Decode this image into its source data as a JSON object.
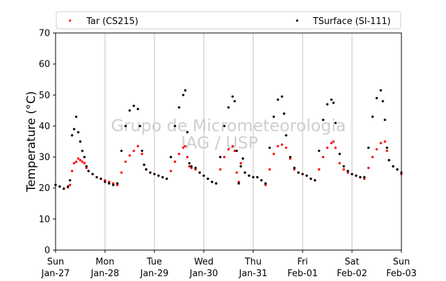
{
  "chart_data": {
    "type": "scatter",
    "title": "",
    "xlabel": "",
    "ylabel": "Temperature (°C)",
    "ylim": [
      0,
      70
    ],
    "yticks": [
      0,
      10,
      20,
      30,
      40,
      50,
      60,
      70
    ],
    "xlim": [
      "2019-01-27 00:00",
      "2019-02-03 00:00"
    ],
    "grid": "vertical lines at each day",
    "legend_position": "top, two columns above plot",
    "xticks": [
      {
        "day": "Sun",
        "date": "Jan-27"
      },
      {
        "day": "Mon",
        "date": "Jan-28"
      },
      {
        "day": "Tue",
        "date": "Jan-29"
      },
      {
        "day": "Wed",
        "date": "Jan-30"
      },
      {
        "day": "Thu",
        "date": "Jan-31"
      },
      {
        "day": "Fri",
        "date": "Feb-01"
      },
      {
        "day": "Sat",
        "date": "Feb-02"
      },
      {
        "day": "Sun",
        "date": "Feb-03"
      }
    ],
    "watermark": [
      "Grupo de Micrometeorologia",
      "IAG / USP"
    ],
    "series": [
      {
        "name": "Tar (CS215)",
        "color": "#ff0000",
        "points": [
          [
            "2019-01-27 00:00",
            21.0
          ],
          [
            "2019-01-27 02:00",
            20.5
          ],
          [
            "2019-01-27 04:00",
            19.8
          ],
          [
            "2019-01-27 06:00",
            20.2
          ],
          [
            "2019-01-27 07:00",
            21.0
          ],
          [
            "2019-01-27 08:00",
            25.5
          ],
          [
            "2019-01-27 09:00",
            28.0
          ],
          [
            "2019-01-27 10:00",
            28.5
          ],
          [
            "2019-01-27 11:00",
            29.5
          ],
          [
            "2019-01-27 12:00",
            29.0
          ],
          [
            "2019-01-27 13:00",
            28.5
          ],
          [
            "2019-01-27 14:00",
            28.0
          ],
          [
            "2019-01-27 15:00",
            26.5
          ],
          [
            "2019-01-27 16:00",
            25.5
          ],
          [
            "2019-01-27 18:00",
            24.5
          ],
          [
            "2019-01-27 20:00",
            23.5
          ],
          [
            "2019-01-27 22:00",
            23.0
          ],
          [
            "2019-01-28 00:00",
            22.5
          ],
          [
            "2019-01-28 02:00",
            22.0
          ],
          [
            "2019-01-28 04:00",
            21.5
          ],
          [
            "2019-01-28 06:00",
            21.0
          ],
          [
            "2019-01-28 08:00",
            25.0
          ],
          [
            "2019-01-28 10:00",
            28.5
          ],
          [
            "2019-01-28 12:00",
            30.5
          ],
          [
            "2019-01-28 14:00",
            32.0
          ],
          [
            "2019-01-28 16:00",
            33.5
          ],
          [
            "2019-01-28 18:00",
            31.0
          ],
          [
            "2019-01-28 19:00",
            27.5
          ],
          [
            "2019-01-28 20:00",
            26.0
          ],
          [
            "2019-01-28 22:00",
            25.0
          ],
          [
            "2019-01-29 00:00",
            24.5
          ],
          [
            "2019-01-29 02:00",
            24.0
          ],
          [
            "2019-01-29 04:00",
            23.5
          ],
          [
            "2019-01-29 06:00",
            23.0
          ],
          [
            "2019-01-29 08:00",
            25.5
          ],
          [
            "2019-01-29 10:00",
            28.5
          ],
          [
            "2019-01-29 12:00",
            31.0
          ],
          [
            "2019-01-29 14:00",
            33.0
          ],
          [
            "2019-01-29 15:00",
            33.5
          ],
          [
            "2019-01-29 16:00",
            30.0
          ],
          [
            "2019-01-29 17:00",
            27.0
          ],
          [
            "2019-01-29 18:00",
            26.5
          ],
          [
            "2019-01-29 20:00",
            26.0
          ],
          [
            "2019-01-29 22:00",
            25.0
          ],
          [
            "2019-01-30 00:00",
            24.0
          ],
          [
            "2019-01-30 02:00",
            23.0
          ],
          [
            "2019-01-30 04:00",
            22.0
          ],
          [
            "2019-01-30 06:00",
            21.5
          ],
          [
            "2019-01-30 08:00",
            26.0
          ],
          [
            "2019-01-30 10:00",
            30.0
          ],
          [
            "2019-01-30 12:00",
            32.5
          ],
          [
            "2019-01-30 14:00",
            33.5
          ],
          [
            "2019-01-30 15:00",
            32.0
          ],
          [
            "2019-01-30 16:00",
            25.0
          ],
          [
            "2019-01-30 17:00",
            22.0
          ],
          [
            "2019-01-30 18:00",
            28.0
          ],
          [
            "2019-01-30 19:00",
            29.5
          ],
          [
            "2019-01-30 20:00",
            25.0
          ],
          [
            "2019-01-30 22:00",
            24.0
          ],
          [
            "2019-01-31 00:00",
            23.5
          ],
          [
            "2019-01-31 02:00",
            23.5
          ],
          [
            "2019-01-31 04:00",
            22.5
          ],
          [
            "2019-01-31 06:00",
            21.0
          ],
          [
            "2019-01-31 08:00",
            26.0
          ],
          [
            "2019-01-31 10:00",
            31.0
          ],
          [
            "2019-01-31 12:00",
            33.5
          ],
          [
            "2019-01-31 14:00",
            34.0
          ],
          [
            "2019-01-31 16:00",
            33.0
          ],
          [
            "2019-01-31 18:00",
            29.5
          ],
          [
            "2019-01-31 20:00",
            26.0
          ],
          [
            "2019-01-31 22:00",
            25.0
          ],
          [
            "2019-02-01 00:00",
            24.5
          ],
          [
            "2019-02-01 02:00",
            24.0
          ],
          [
            "2019-02-01 04:00",
            23.0
          ],
          [
            "2019-02-01 06:00",
            22.5
          ],
          [
            "2019-02-01 08:00",
            26.0
          ],
          [
            "2019-02-01 10:00",
            30.0
          ],
          [
            "2019-02-01 12:00",
            33.0
          ],
          [
            "2019-02-01 14:00",
            34.5
          ],
          [
            "2019-02-01 15:00",
            35.0
          ],
          [
            "2019-02-01 16:00",
            33.0
          ],
          [
            "2019-02-01 18:00",
            28.0
          ],
          [
            "2019-02-01 20:00",
            26.0
          ],
          [
            "2019-02-01 22:00",
            25.0
          ],
          [
            "2019-02-02 00:00",
            24.5
          ],
          [
            "2019-02-02 02:00",
            24.0
          ],
          [
            "2019-02-02 04:00",
            23.5
          ],
          [
            "2019-02-02 06:00",
            23.0
          ],
          [
            "2019-02-02 08:00",
            26.5
          ],
          [
            "2019-02-02 10:00",
            30.0
          ],
          [
            "2019-02-02 12:00",
            32.5
          ],
          [
            "2019-02-02 14:00",
            34.5
          ],
          [
            "2019-02-02 16:00",
            35.0
          ],
          [
            "2019-02-02 17:00",
            32.0
          ],
          [
            "2019-02-02 18:00",
            29.0
          ],
          [
            "2019-02-02 20:00",
            27.0
          ],
          [
            "2019-02-02 22:00",
            26.0
          ],
          [
            "2019-02-03 00:00",
            24.5
          ]
        ]
      },
      {
        "name": "TSurface (SI-111)",
        "color": "#000000",
        "points": [
          [
            "2019-01-27 00:00",
            21.0
          ],
          [
            "2019-01-27 02:00",
            20.5
          ],
          [
            "2019-01-27 04:00",
            19.8
          ],
          [
            "2019-01-27 06:00",
            20.5
          ],
          [
            "2019-01-27 07:00",
            22.5
          ],
          [
            "2019-01-27 08:00",
            37.0
          ],
          [
            "2019-01-27 09:00",
            39.0
          ],
          [
            "2019-01-27 10:00",
            43.0
          ],
          [
            "2019-01-27 11:00",
            38.0
          ],
          [
            "2019-01-27 12:00",
            35.0
          ],
          [
            "2019-01-27 13:00",
            32.0
          ],
          [
            "2019-01-27 14:00",
            30.0
          ],
          [
            "2019-01-27 15:00",
            27.0
          ],
          [
            "2019-01-27 16:00",
            25.5
          ],
          [
            "2019-01-27 18:00",
            24.5
          ],
          [
            "2019-01-27 20:00",
            23.5
          ],
          [
            "2019-01-27 22:00",
            23.0
          ],
          [
            "2019-01-28 00:00",
            22.0
          ],
          [
            "2019-01-28 02:00",
            21.5
          ],
          [
            "2019-01-28 04:00",
            21.0
          ],
          [
            "2019-01-28 06:00",
            21.5
          ],
          [
            "2019-01-28 08:00",
            32.0
          ],
          [
            "2019-01-28 10:00",
            40.0
          ],
          [
            "2019-01-28 12:00",
            45.0
          ],
          [
            "2019-01-28 14:00",
            46.5
          ],
          [
            "2019-01-28 16:00",
            45.5
          ],
          [
            "2019-01-28 17:00",
            40.0
          ],
          [
            "2019-01-28 18:00",
            32.0
          ],
          [
            "2019-01-28 19:00",
            27.5
          ],
          [
            "2019-01-28 20:00",
            26.0
          ],
          [
            "2019-01-28 22:00",
            25.0
          ],
          [
            "2019-01-29 00:00",
            24.5
          ],
          [
            "2019-01-29 02:00",
            24.0
          ],
          [
            "2019-01-29 04:00",
            23.5
          ],
          [
            "2019-01-29 06:00",
            23.0
          ],
          [
            "2019-01-29 08:00",
            30.0
          ],
          [
            "2019-01-29 10:00",
            40.0
          ],
          [
            "2019-01-29 12:00",
            46.0
          ],
          [
            "2019-01-29 14:00",
            50.0
          ],
          [
            "2019-01-29 15:00",
            51.5
          ],
          [
            "2019-01-29 16:00",
            38.0
          ],
          [
            "2019-01-29 17:00",
            28.0
          ],
          [
            "2019-01-29 18:00",
            27.0
          ],
          [
            "2019-01-29 20:00",
            26.5
          ],
          [
            "2019-01-29 22:00",
            25.0
          ],
          [
            "2019-01-30 00:00",
            24.0
          ],
          [
            "2019-01-30 02:00",
            23.0
          ],
          [
            "2019-01-30 04:00",
            22.0
          ],
          [
            "2019-01-30 06:00",
            21.5
          ],
          [
            "2019-01-30 08:00",
            30.0
          ],
          [
            "2019-01-30 10:00",
            40.0
          ],
          [
            "2019-01-30 12:00",
            46.0
          ],
          [
            "2019-01-30 14:00",
            49.5
          ],
          [
            "2019-01-30 15:00",
            48.0
          ],
          [
            "2019-01-30 16:00",
            32.0
          ],
          [
            "2019-01-30 17:00",
            21.5
          ],
          [
            "2019-01-30 18:00",
            27.0
          ],
          [
            "2019-01-30 19:00",
            29.5
          ],
          [
            "2019-01-30 20:00",
            25.0
          ],
          [
            "2019-01-30 22:00",
            24.0
          ],
          [
            "2019-01-31 00:00",
            23.5
          ],
          [
            "2019-01-31 02:00",
            23.5
          ],
          [
            "2019-01-31 04:00",
            22.5
          ],
          [
            "2019-01-31 06:00",
            21.5
          ],
          [
            "2019-01-31 08:00",
            33.0
          ],
          [
            "2019-01-31 10:00",
            43.0
          ],
          [
            "2019-01-31 12:00",
            48.5
          ],
          [
            "2019-01-31 14:00",
            49.5
          ],
          [
            "2019-01-31 15:00",
            44.0
          ],
          [
            "2019-01-31 16:00",
            37.0
          ],
          [
            "2019-01-31 18:00",
            30.0
          ],
          [
            "2019-01-31 20:00",
            26.5
          ],
          [
            "2019-01-31 22:00",
            25.0
          ],
          [
            "2019-02-01 00:00",
            24.5
          ],
          [
            "2019-02-01 02:00",
            24.0
          ],
          [
            "2019-02-01 04:00",
            23.0
          ],
          [
            "2019-02-01 06:00",
            22.5
          ],
          [
            "2019-02-01 08:00",
            32.0
          ],
          [
            "2019-02-01 10:00",
            42.0
          ],
          [
            "2019-02-01 12:00",
            47.0
          ],
          [
            "2019-02-01 14:00",
            48.5
          ],
          [
            "2019-02-01 15:00",
            47.5
          ],
          [
            "2019-02-01 16:00",
            41.0
          ],
          [
            "2019-02-01 18:00",
            31.0
          ],
          [
            "2019-02-01 20:00",
            27.0
          ],
          [
            "2019-02-01 22:00",
            25.5
          ],
          [
            "2019-02-02 00:00",
            24.5
          ],
          [
            "2019-02-02 02:00",
            24.0
          ],
          [
            "2019-02-02 04:00",
            23.5
          ],
          [
            "2019-02-02 06:00",
            23.5
          ],
          [
            "2019-02-02 08:00",
            33.0
          ],
          [
            "2019-02-02 10:00",
            43.0
          ],
          [
            "2019-02-02 12:00",
            49.0
          ],
          [
            "2019-02-02 14:00",
            51.5
          ],
          [
            "2019-02-02 15:00",
            48.0
          ],
          [
            "2019-02-02 16:00",
            42.0
          ],
          [
            "2019-02-02 17:00",
            33.0
          ],
          [
            "2019-02-02 18:00",
            29.0
          ],
          [
            "2019-02-02 20:00",
            27.0
          ],
          [
            "2019-02-02 22:00",
            26.0
          ],
          [
            "2019-02-03 00:00",
            25.0
          ]
        ]
      }
    ]
  }
}
